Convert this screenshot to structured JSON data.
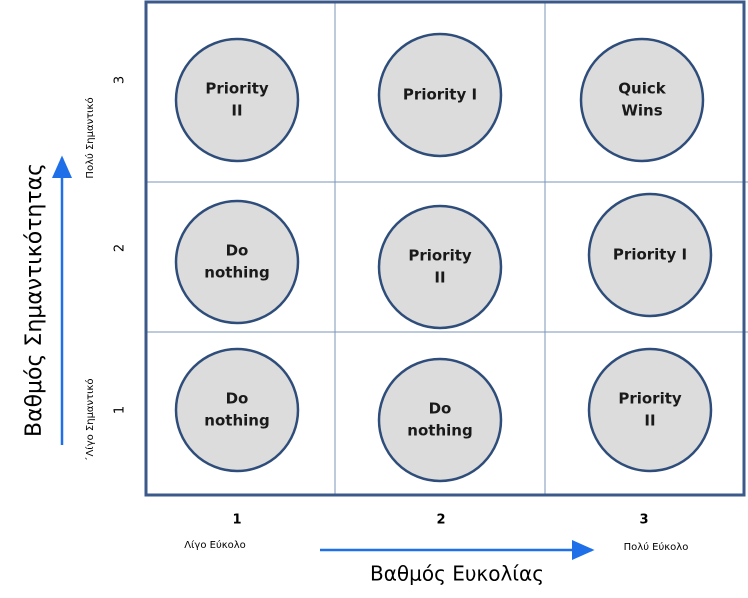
{
  "matrix": {
    "rows": [
      [
        [
          "Priority",
          "II"
        ],
        [
          "Priority I"
        ],
        [
          "Quick",
          "Wins"
        ]
      ],
      [
        [
          "Do",
          "nothing"
        ],
        [
          "Priority",
          "II"
        ],
        [
          "Priority I"
        ]
      ],
      [
        [
          "Do",
          "nothing"
        ],
        [
          "Do",
          "nothing"
        ],
        [
          "Priority",
          "II"
        ]
      ]
    ]
  },
  "y_axis": {
    "title": "Βαθμός Σημαντικότητας",
    "ticks": [
      "3",
      "2",
      "1"
    ],
    "high_label": "Πολύ Σημαντικό",
    "low_label": "΄Λίγο Σημαντικό"
  },
  "x_axis": {
    "title": "Βαθμός Ευκολίας",
    "ticks": [
      "1",
      "2",
      "3"
    ],
    "low_label": "Λίγο Εύκολο",
    "high_label": "Πολύ Εύκολο"
  }
}
